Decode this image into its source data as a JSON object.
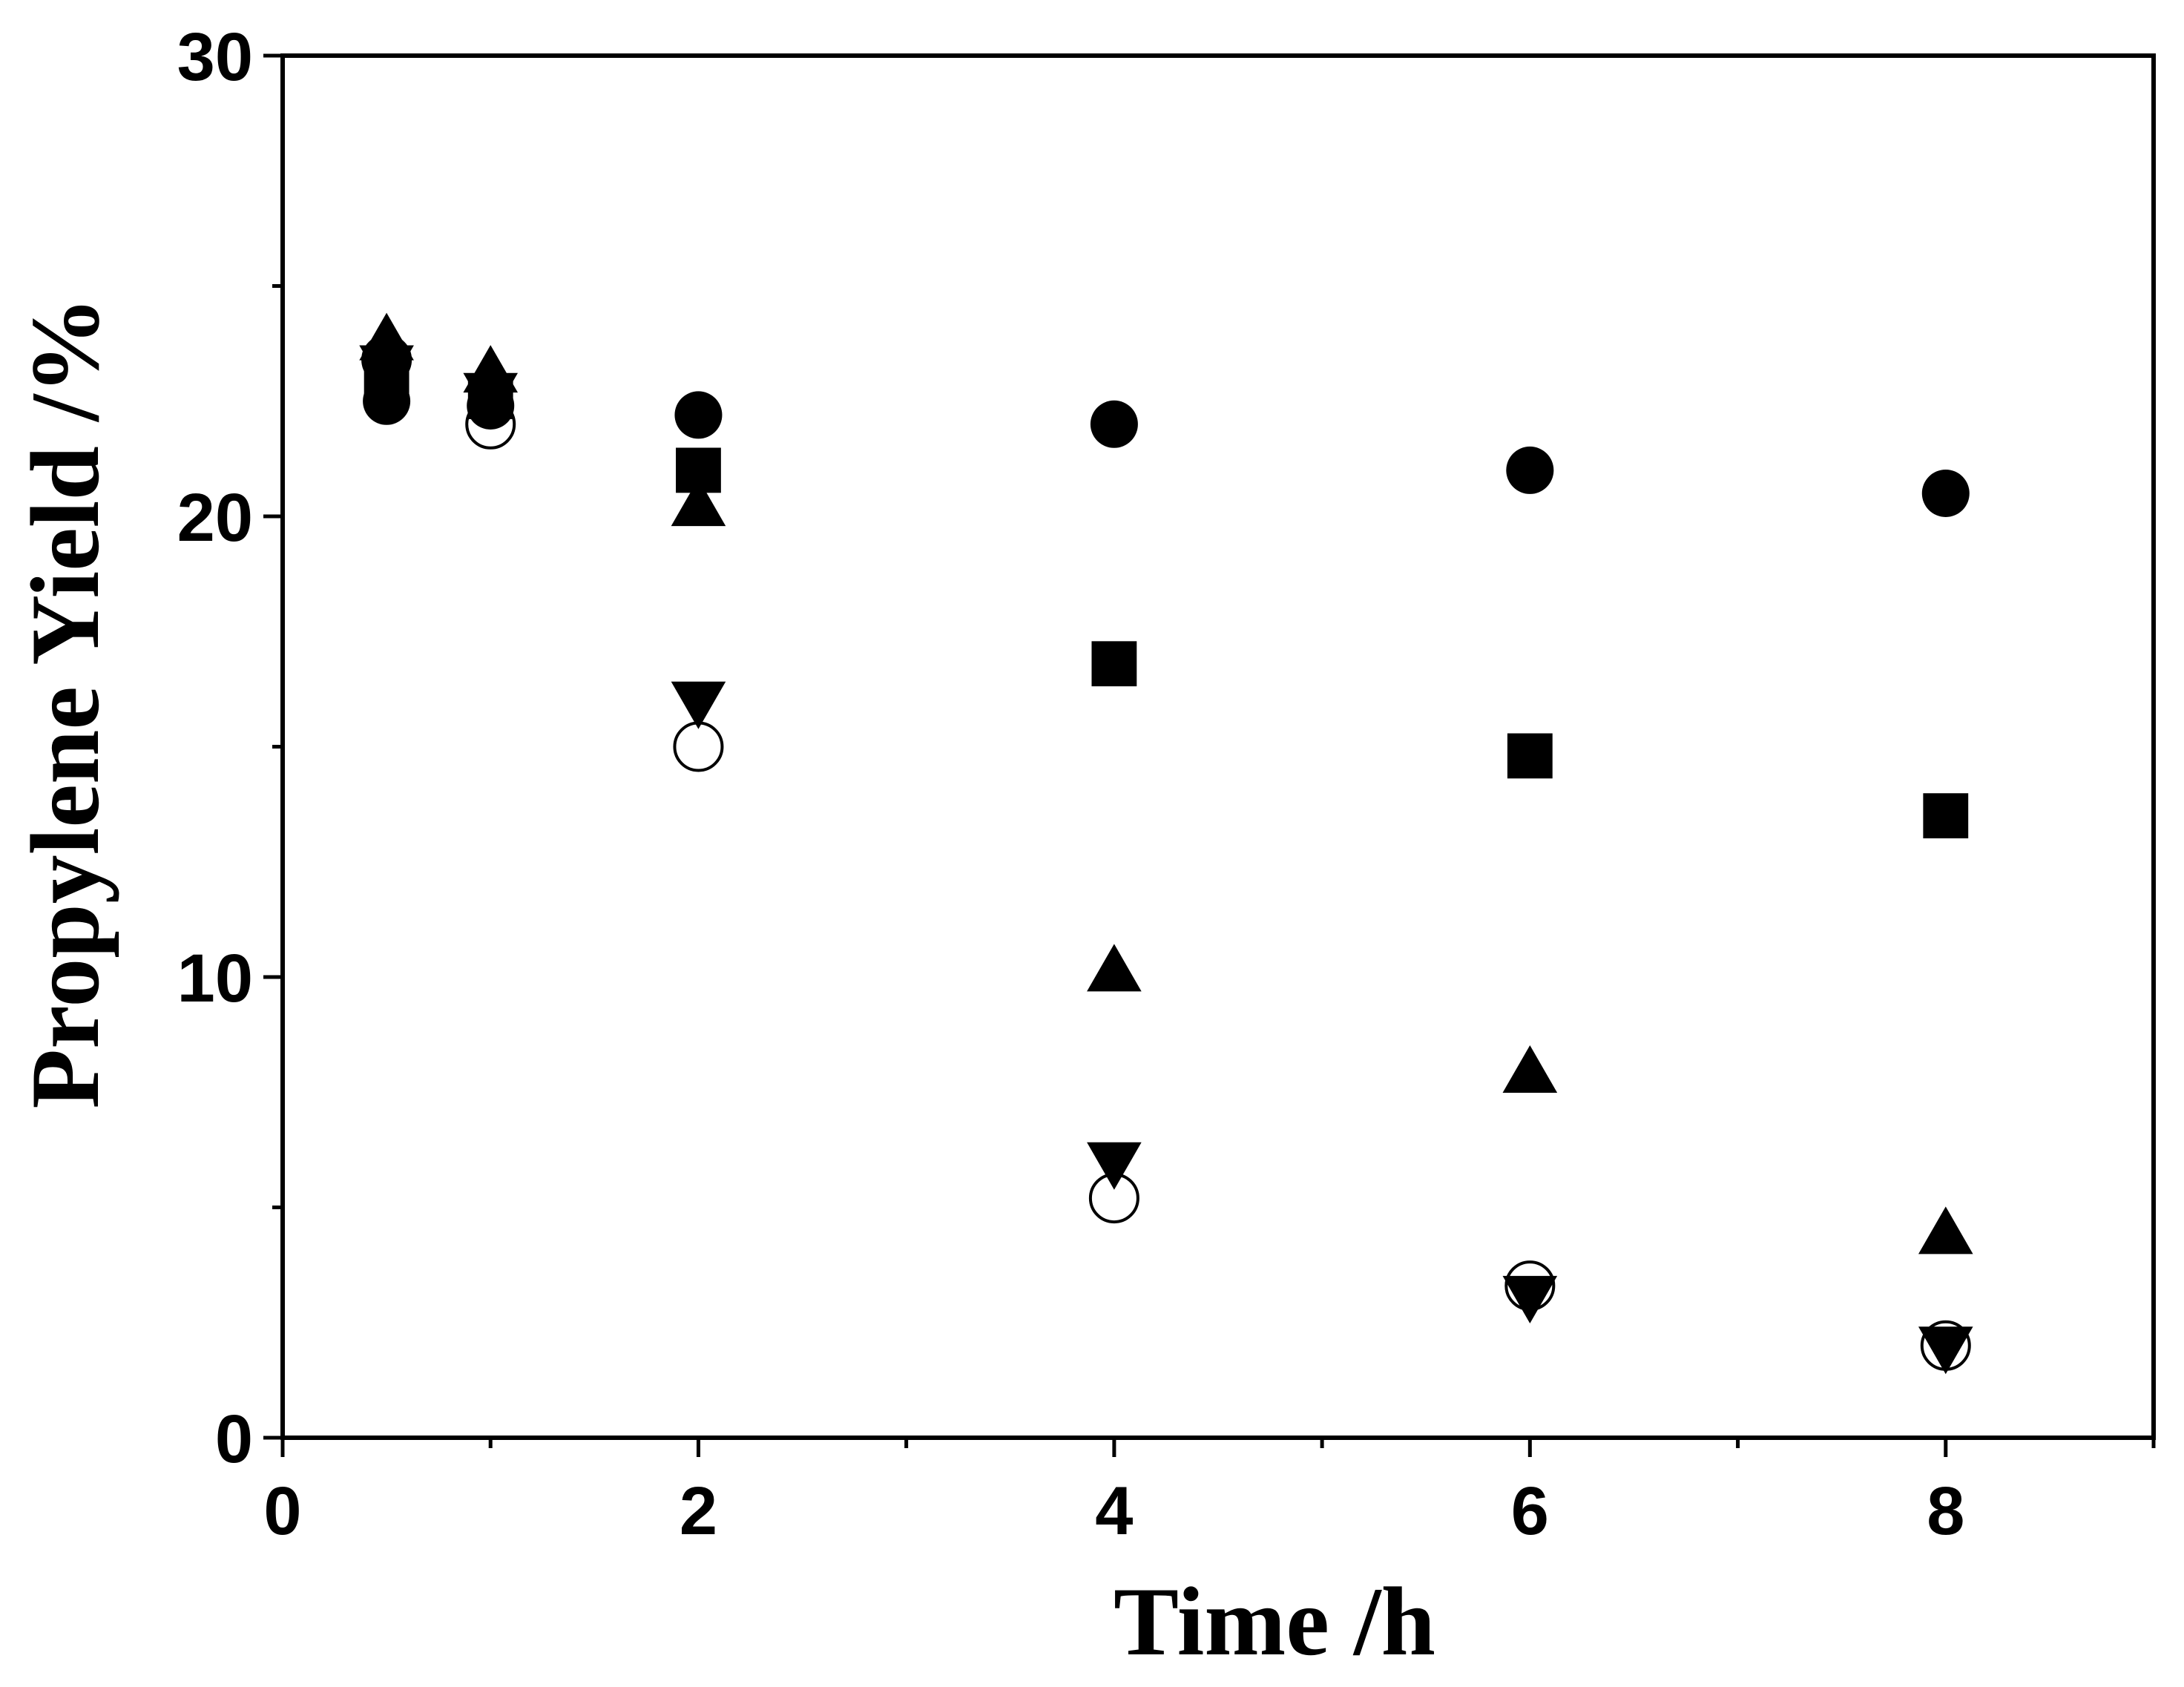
{
  "chart_data": {
    "type": "scatter",
    "x_label": "Time /h",
    "y_label": "Propylene Yield /%",
    "x": [
      0.5,
      1,
      2,
      4,
      6,
      8
    ],
    "series": [
      {
        "marker": "circle",
        "filled": true,
        "color": "#000000",
        "values": [
          22.5,
          22.4,
          22.2,
          22.0,
          21.0,
          20.5
        ]
      },
      {
        "marker": "square",
        "filled": true,
        "color": "#000000",
        "values": [
          23.0,
          22.6,
          21.0,
          16.8,
          14.8,
          13.5
        ]
      },
      {
        "marker": "triangle-up",
        "filled": true,
        "color": "#000000",
        "values": [
          23.8,
          23.1,
          20.2,
          10.1,
          7.9,
          4.4
        ]
      },
      {
        "marker": "triangle-down",
        "filled": true,
        "color": "#000000",
        "values": [
          23.3,
          22.7,
          16.0,
          6.0,
          3.1,
          2.0
        ]
      },
      {
        "marker": "circle",
        "filled": false,
        "color": "#000000",
        "values": [
          23.4,
          22.0,
          15.0,
          5.2,
          3.3,
          2.0
        ]
      }
    ],
    "xlim": [
      0,
      9
    ],
    "xticks": [
      0,
      2,
      4,
      6,
      8
    ],
    "ylim": [
      0,
      30
    ],
    "yticks": [
      0,
      10,
      20,
      30
    ],
    "minor_ticks": true,
    "grid": false
  }
}
